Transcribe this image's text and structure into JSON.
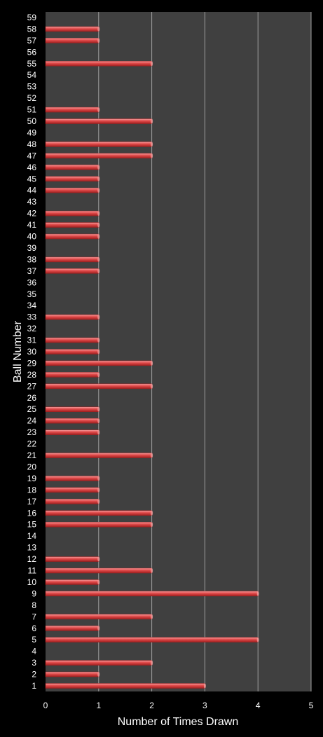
{
  "chart_data": {
    "type": "bar",
    "orientation": "horizontal",
    "title": "",
    "xlabel": "Number of Times Drawn",
    "ylabel": "Ball Number",
    "xlim": [
      0,
      5
    ],
    "xticks": [
      0,
      1,
      2,
      3,
      4,
      5
    ],
    "grid": true,
    "legend": "none",
    "categories": [
      "1",
      "2",
      "3",
      "4",
      "5",
      "6",
      "7",
      "8",
      "9",
      "10",
      "11",
      "12",
      "13",
      "14",
      "15",
      "16",
      "17",
      "18",
      "19",
      "20",
      "21",
      "22",
      "23",
      "24",
      "25",
      "26",
      "27",
      "28",
      "29",
      "30",
      "31",
      "32",
      "33",
      "34",
      "35",
      "36",
      "37",
      "38",
      "39",
      "40",
      "41",
      "42",
      "43",
      "44",
      "45",
      "46",
      "47",
      "48",
      "49",
      "50",
      "51",
      "52",
      "53",
      "54",
      "55",
      "56",
      "57",
      "58",
      "59"
    ],
    "values": [
      3,
      1,
      2,
      0,
      4,
      1,
      2,
      0,
      4,
      1,
      2,
      1,
      0,
      0,
      2,
      2,
      1,
      1,
      1,
      0,
      2,
      0,
      1,
      1,
      1,
      0,
      2,
      1,
      2,
      1,
      1,
      0,
      1,
      0,
      0,
      0,
      1,
      1,
      0,
      1,
      1,
      1,
      0,
      1,
      1,
      1,
      2,
      2,
      0,
      2,
      1,
      0,
      0,
      0,
      2,
      0,
      1,
      1,
      0
    ],
    "colors": {
      "background": "#000000",
      "plot_area": "#404040",
      "gridline": "#a0a0a0",
      "bar_light": "#f4a0a0",
      "bar_main": "#e04848",
      "bar_dark": "#a02020",
      "text": "#ffffff"
    }
  }
}
